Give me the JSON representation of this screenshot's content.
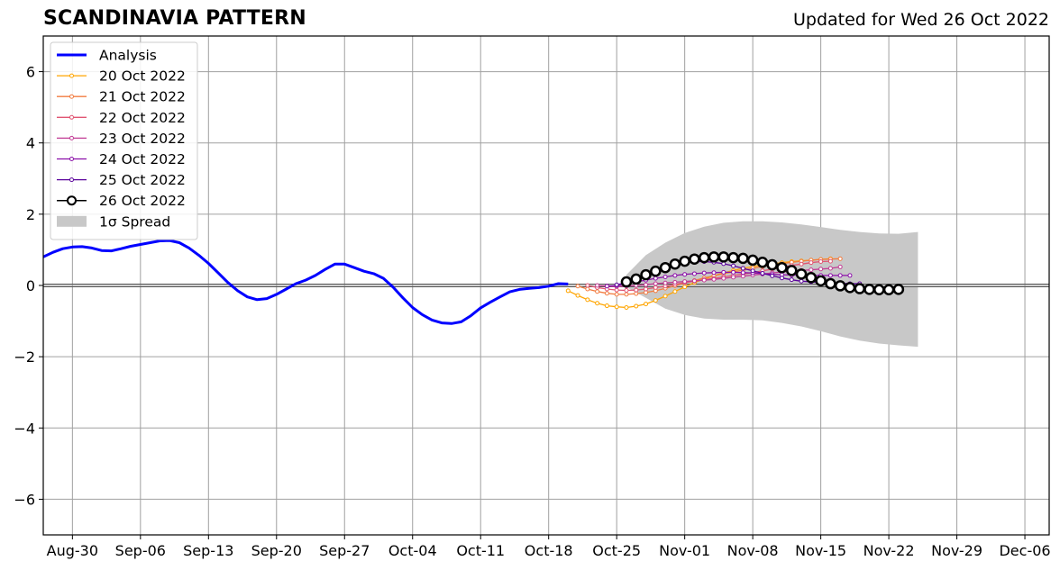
{
  "header": {
    "title": "SCANDINAVIA PATTERN",
    "updated": "Updated for Wed 26 Oct 2022"
  },
  "chart_data": {
    "type": "line",
    "title": "SCANDINAVIA PATTERN",
    "subtitle": "Updated for Wed 26 Oct 2022",
    "xlabel": "",
    "ylabel": "",
    "x_unit": "days since 2022-08-27 (axis shows dates)",
    "xlim": [
      0,
      103.5
    ],
    "ylim": [
      -7,
      7
    ],
    "grid": true,
    "legend_position": "top-left",
    "x_ticks": [
      {
        "x": 3,
        "label": "Aug-30"
      },
      {
        "x": 10,
        "label": "Sep-06"
      },
      {
        "x": 17,
        "label": "Sep-13"
      },
      {
        "x": 24,
        "label": "Sep-20"
      },
      {
        "x": 31,
        "label": "Sep-27"
      },
      {
        "x": 38,
        "label": "Oct-04"
      },
      {
        "x": 45,
        "label": "Oct-11"
      },
      {
        "x": 52,
        "label": "Oct-18"
      },
      {
        "x": 59,
        "label": "Oct-25"
      },
      {
        "x": 66,
        "label": "Nov-01"
      },
      {
        "x": 73,
        "label": "Nov-08"
      },
      {
        "x": 80,
        "label": "Nov-15"
      },
      {
        "x": 87,
        "label": "Nov-22"
      },
      {
        "x": 94,
        "label": "Nov-29"
      },
      {
        "x": 101,
        "label": "Dec-06"
      }
    ],
    "y_ticks": [
      {
        "y": 6,
        "label": "6"
      },
      {
        "y": 4,
        "label": "4"
      },
      {
        "y": 2,
        "label": "2"
      },
      {
        "y": 0,
        "label": "0"
      },
      {
        "y": -2,
        "label": "−2"
      },
      {
        "y": -4,
        "label": "−4"
      },
      {
        "y": -6,
        "label": "−6"
      }
    ],
    "analysis": {
      "name": "Analysis",
      "color": "#0000ff",
      "points": [
        [
          0,
          0.8
        ],
        [
          1,
          0.93
        ],
        [
          2,
          1.03
        ],
        [
          3,
          1.08
        ],
        [
          4,
          1.09
        ],
        [
          5,
          1.05
        ],
        [
          6,
          0.98
        ],
        [
          7,
          0.97
        ],
        [
          8,
          1.03
        ],
        [
          9,
          1.1
        ],
        [
          10,
          1.15
        ],
        [
          11,
          1.2
        ],
        [
          12,
          1.25
        ],
        [
          13,
          1.26
        ],
        [
          14,
          1.2
        ],
        [
          15,
          1.05
        ],
        [
          16,
          0.85
        ],
        [
          17,
          0.62
        ],
        [
          18,
          0.35
        ],
        [
          19,
          0.08
        ],
        [
          20,
          -0.15
        ],
        [
          21,
          -0.32
        ],
        [
          22,
          -0.4
        ],
        [
          23,
          -0.37
        ],
        [
          24,
          -0.25
        ],
        [
          25,
          -0.1
        ],
        [
          26,
          0.05
        ],
        [
          27,
          0.15
        ],
        [
          28,
          0.28
        ],
        [
          29,
          0.45
        ],
        [
          30,
          0.6
        ],
        [
          31,
          0.6
        ],
        [
          32,
          0.5
        ],
        [
          33,
          0.4
        ],
        [
          34,
          0.33
        ],
        [
          35,
          0.2
        ],
        [
          36,
          -0.05
        ],
        [
          37,
          -0.35
        ],
        [
          38,
          -0.62
        ],
        [
          39,
          -0.82
        ],
        [
          40,
          -0.97
        ],
        [
          41,
          -1.05
        ],
        [
          42,
          -1.07
        ],
        [
          43,
          -1.02
        ],
        [
          44,
          -0.85
        ],
        [
          45,
          -0.63
        ],
        [
          46,
          -0.47
        ],
        [
          47,
          -0.32
        ],
        [
          48,
          -0.18
        ],
        [
          49,
          -0.11
        ],
        [
          50,
          -0.08
        ],
        [
          51,
          -0.06
        ],
        [
          52,
          -0.02
        ],
        [
          53,
          0.05
        ],
        [
          54,
          0.04
        ]
      ]
    },
    "spread": {
      "name": "1σ Spread",
      "color": "#c8c8c8",
      "x": [
        60,
        62,
        64,
        66,
        68,
        70,
        72,
        74,
        76,
        78,
        80,
        82,
        84,
        86,
        88,
        90
      ],
      "upper": [
        0.3,
        0.85,
        1.2,
        1.47,
        1.65,
        1.76,
        1.8,
        1.8,
        1.77,
        1.71,
        1.64,
        1.56,
        1.5,
        1.46,
        1.45,
        1.5
      ],
      "lower": [
        -0.05,
        -0.35,
        -0.65,
        -0.83,
        -0.93,
        -0.96,
        -0.96,
        -0.98,
        -1.05,
        -1.15,
        -1.28,
        -1.43,
        -1.55,
        -1.63,
        -1.68,
        -1.72
      ]
    },
    "series": [
      {
        "name": "20 Oct 2022",
        "color": "#ffa500",
        "start_x": 54,
        "values": [
          -0.15,
          -0.28,
          -0.4,
          -0.5,
          -0.57,
          -0.6,
          -0.62,
          -0.58,
          -0.52,
          -0.42,
          -0.3,
          -0.17,
          -0.04,
          0.08,
          0.18,
          0.27,
          0.35,
          0.42,
          0.48,
          0.53,
          0.57,
          0.6,
          0.64,
          0.67,
          0.69,
          0.71,
          0.73,
          0.75
        ]
      },
      {
        "name": "21 Oct 2022",
        "color": "#f27c40",
        "start_x": 55,
        "values": [
          -0.02,
          -0.1,
          -0.17,
          -0.22,
          -0.25,
          -0.25,
          -0.23,
          -0.2,
          -0.15,
          -0.08,
          -0.01,
          0.07,
          0.14,
          0.21,
          0.27,
          0.33,
          0.38,
          0.43,
          0.48,
          0.53,
          0.57,
          0.61,
          0.65,
          0.68,
          0.71,
          0.73,
          0.74,
          0.75
        ]
      },
      {
        "name": "22 Oct 2022",
        "color": "#e05572",
        "start_x": 56,
        "values": [
          0.0,
          -0.06,
          -0.1,
          -0.13,
          -0.14,
          -0.13,
          -0.1,
          -0.06,
          -0.02,
          0.03,
          0.08,
          0.12,
          0.16,
          0.2,
          0.24,
          0.28,
          0.32,
          0.36,
          0.41,
          0.46,
          0.51,
          0.56,
          0.6,
          0.64,
          0.67,
          0.68
        ]
      },
      {
        "name": "23 Oct 2022",
        "color": "#c13c94",
        "start_x": 57,
        "values": [
          0.0,
          -0.02,
          -0.03,
          -0.02,
          0.0,
          0.02,
          0.05,
          0.07,
          0.09,
          0.11,
          0.13,
          0.15,
          0.17,
          0.2,
          0.23,
          0.26,
          0.29,
          0.32,
          0.35,
          0.38,
          0.4,
          0.42,
          0.44,
          0.46,
          0.48,
          0.52
        ]
      },
      {
        "name": "24 Oct 2022",
        "color": "#8a0fa8",
        "start_x": 58,
        "values": [
          -0.02,
          0.0,
          0.05,
          0.1,
          0.15,
          0.2,
          0.24,
          0.28,
          0.31,
          0.33,
          0.35,
          0.36,
          0.37,
          0.37,
          0.36,
          0.35,
          0.33,
          0.31,
          0.3,
          0.29,
          0.29,
          0.28,
          0.28,
          0.28,
          0.28,
          0.28
        ]
      },
      {
        "name": "25 Oct 2022",
        "color": "#5b049c",
        "start_x": 59,
        "values": [
          0.02,
          0.08,
          0.18,
          0.3,
          0.42,
          0.52,
          0.6,
          0.65,
          0.67,
          0.67,
          0.65,
          0.61,
          0.55,
          0.48,
          0.41,
          0.34,
          0.27,
          0.21,
          0.16,
          0.12,
          0.1,
          0.08,
          0.07,
          0.06,
          0.05,
          0.05
        ]
      },
      {
        "name": "26 Oct 2022",
        "color": "#000000",
        "start_x": 60,
        "marker": "open-circle",
        "values": [
          0.1,
          0.18,
          0.3,
          0.4,
          0.5,
          0.6,
          0.68,
          0.74,
          0.78,
          0.8,
          0.8,
          0.78,
          0.76,
          0.71,
          0.65,
          0.58,
          0.5,
          0.42,
          0.32,
          0.22,
          0.13,
          0.05,
          -0.01,
          -0.06,
          -0.09,
          -0.11,
          -0.12,
          -0.12,
          -0.11
        ]
      }
    ],
    "legend": {
      "position": "top-left",
      "entries": [
        "Analysis",
        "20 Oct 2022",
        "21 Oct 2022",
        "22 Oct 2022",
        "23 Oct 2022",
        "24 Oct 2022",
        "25 Oct 2022",
        "26 Oct 2022",
        "1σ Spread"
      ]
    }
  }
}
